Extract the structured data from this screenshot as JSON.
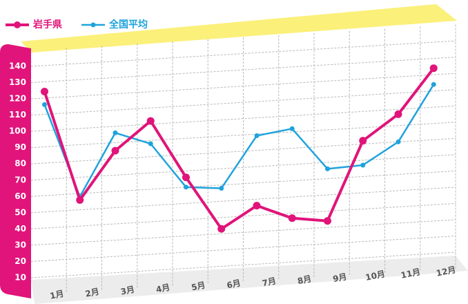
{
  "chart_data": {
    "type": "line",
    "categories": [
      "1月",
      "2月",
      "3月",
      "4月",
      "5月",
      "6月",
      "7月",
      "8月",
      "9月",
      "10月",
      "11月",
      "12月"
    ],
    "series": [
      {
        "name": "岩手県",
        "color": "#e0147a",
        "values": [
          124,
          56,
          85,
          102,
          66,
          33,
          46,
          37,
          34,
          82,
          97,
          124
        ]
      },
      {
        "name": "全国平均",
        "color": "#1fa3dc",
        "values": [
          116,
          58,
          96,
          88,
          60,
          58,
          89,
          92,
          66,
          67,
          80,
          114
        ]
      }
    ],
    "ylim": [
      0,
      150
    ],
    "yticks": [
      10,
      20,
      30,
      40,
      50,
      60,
      70,
      80,
      90,
      100,
      110,
      120,
      130,
      140
    ],
    "grid": true
  }
}
